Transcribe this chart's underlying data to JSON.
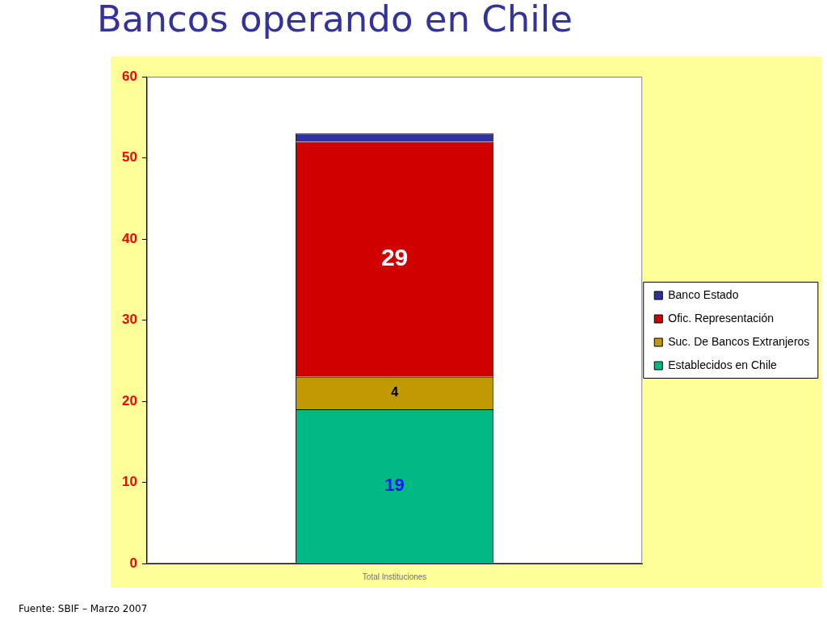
{
  "chart_data": {
    "type": "bar",
    "title": "Bancos operando en Chile",
    "categories": [
      "Total Instituciones"
    ],
    "stacked": true,
    "series": [
      {
        "name": "Establecidos en Chile",
        "color": "#00b884",
        "values": [
          19
        ],
        "value_labels": [
          "19"
        ]
      },
      {
        "name": "Suc. De Bancos Extranjeros",
        "color": "#c09a00",
        "values": [
          4
        ],
        "value_labels": [
          "4"
        ]
      },
      {
        "name": "Ofic. Representación",
        "color": "#d00000",
        "values": [
          29
        ],
        "value_labels": [
          "29"
        ]
      },
      {
        "name": "Banco Estado",
        "color": "#3030a0",
        "values": [
          1
        ]
      }
    ],
    "ylim": [
      0,
      60
    ],
    "yticks": [
      0,
      10,
      20,
      30,
      40,
      50,
      60
    ],
    "grid": false,
    "legend": "right",
    "annotations": [
      "Fuente: SBIF – Marzo 2007"
    ]
  }
}
